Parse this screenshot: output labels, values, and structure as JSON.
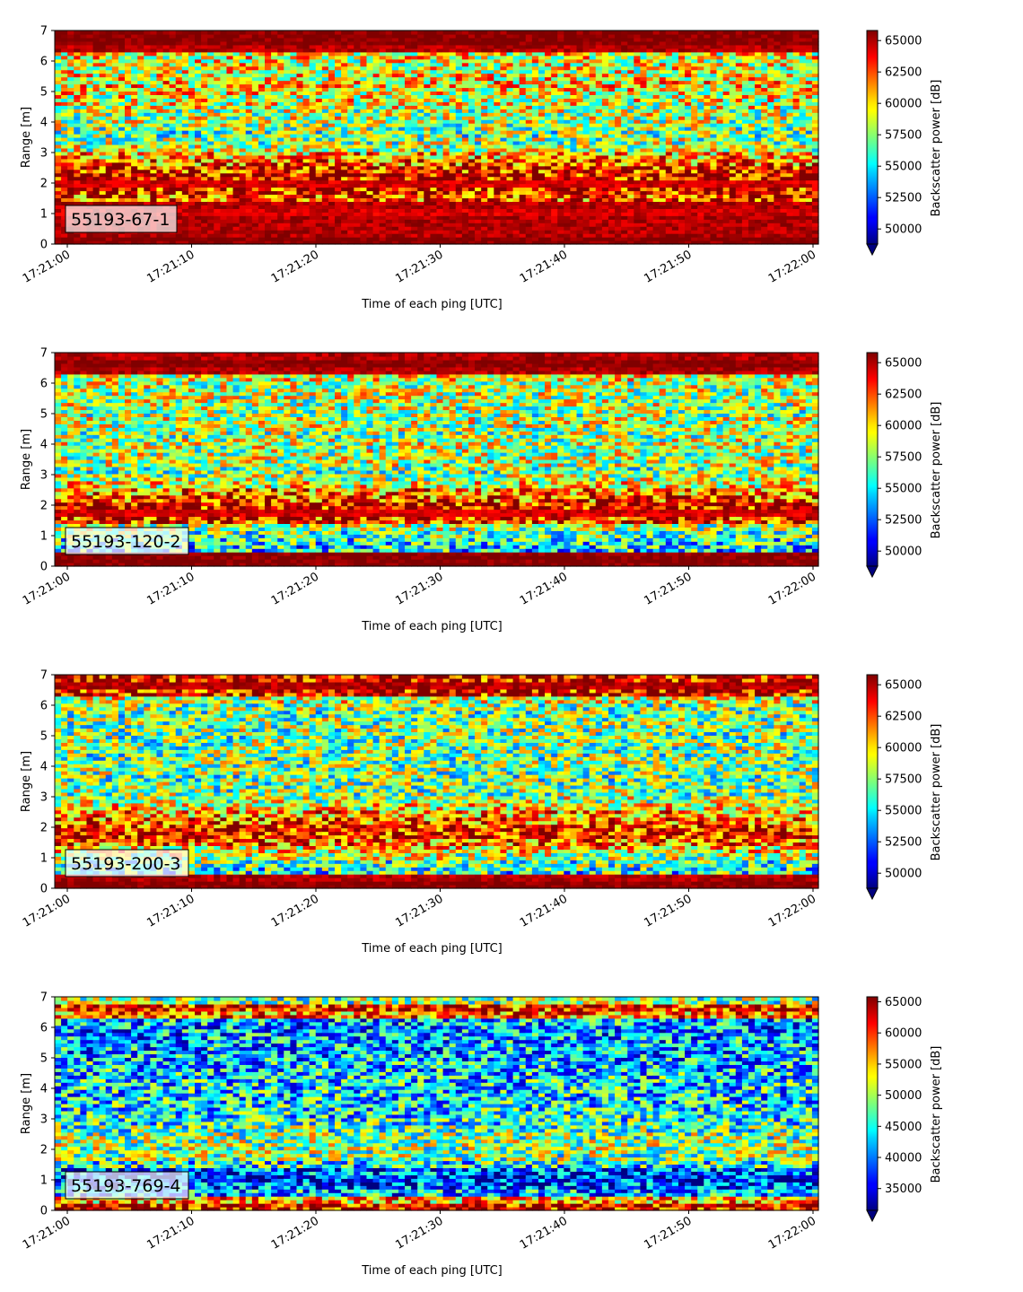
{
  "chart_data": [
    {
      "type": "heatmap",
      "label": "55193-67-1",
      "xlabel": "Time of each ping [UTC]",
      "ylabel": "Range [m]",
      "x_range": [
        "17:21:00",
        "17:22:00"
      ],
      "x_ticks": [
        "17:21:00",
        "17:21:10",
        "17:21:20",
        "17:21:30",
        "17:21:40",
        "17:21:50",
        "17:22:00"
      ],
      "y_ticks": [
        "0",
        "1",
        "2",
        "3",
        "4",
        "5",
        "6",
        "7"
      ],
      "ylim": [
        0,
        7
      ],
      "colorbar": {
        "label": "Backscatter power [dB]",
        "vmin": 48800,
        "vmax": 65800,
        "ticks": [
          "50000",
          "52500",
          "55000",
          "57500",
          "60000",
          "62500",
          "65000"
        ],
        "extend": "min"
      },
      "profile": {
        "description_note": "per-range-bin mean level (fraction of color range) from 0 m to 7 m",
        "levels": [
          1.0,
          0.95,
          0.95,
          0.95,
          0.92,
          0.95,
          0.82,
          0.88,
          0.92,
          0.9,
          0.86,
          0.78,
          0.7,
          0.55,
          0.52,
          0.48,
          0.52,
          0.55,
          0.55,
          0.58,
          0.6,
          0.62,
          0.65,
          0.62,
          0.6,
          0.6,
          0.62,
          0.95,
          1.0,
          1.0
        ]
      }
    },
    {
      "type": "heatmap",
      "label": "55193-120-2",
      "xlabel": "Time of each ping [UTC]",
      "ylabel": "Range [m]",
      "x_range": [
        "17:21:00",
        "17:22:00"
      ],
      "x_ticks": [
        "17:21:00",
        "17:21:10",
        "17:21:20",
        "17:21:30",
        "17:21:40",
        "17:21:50",
        "17:22:00"
      ],
      "y_ticks": [
        "0",
        "1",
        "2",
        "3",
        "4",
        "5",
        "6",
        "7"
      ],
      "ylim": [
        0,
        7
      ],
      "colorbar": {
        "label": "Backscatter power [dB]",
        "vmin": 48800,
        "vmax": 65800,
        "ticks": [
          "50000",
          "52500",
          "55000",
          "57500",
          "60000",
          "62500",
          "65000"
        ],
        "extend": "min"
      },
      "profile": {
        "levels": [
          1.0,
          1.0,
          0.35,
          0.4,
          0.45,
          0.55,
          0.85,
          0.92,
          0.9,
          0.8,
          0.75,
          0.62,
          0.55,
          0.5,
          0.55,
          0.55,
          0.55,
          0.55,
          0.52,
          0.55,
          0.55,
          0.52,
          0.55,
          0.55,
          0.55,
          0.55,
          0.6,
          0.95,
          1.0,
          0.95
        ]
      }
    },
    {
      "type": "heatmap",
      "label": "55193-200-3",
      "xlabel": "Time of each ping [UTC]",
      "ylabel": "Range [m]",
      "x_range": [
        "17:21:00",
        "17:22:00"
      ],
      "x_ticks": [
        "17:21:00",
        "17:21:10",
        "17:21:20",
        "17:21:30",
        "17:21:40",
        "17:21:50",
        "17:22:00"
      ],
      "y_ticks": [
        "0",
        "1",
        "2",
        "3",
        "4",
        "5",
        "6",
        "7"
      ],
      "ylim": [
        0,
        7
      ],
      "colorbar": {
        "label": "Backscatter power [dB]",
        "vmin": 48800,
        "vmax": 65800,
        "ticks": [
          "50000",
          "52500",
          "55000",
          "57500",
          "60000",
          "62500",
          "65000"
        ],
        "extend": "min"
      },
      "profile": {
        "levels": [
          1.0,
          0.95,
          0.4,
          0.45,
          0.55,
          0.65,
          0.78,
          0.88,
          0.85,
          0.78,
          0.72,
          0.62,
          0.55,
          0.5,
          0.5,
          0.48,
          0.5,
          0.5,
          0.48,
          0.5,
          0.5,
          0.48,
          0.5,
          0.5,
          0.48,
          0.5,
          0.58,
          0.9,
          0.95,
          0.9
        ]
      }
    },
    {
      "type": "heatmap",
      "label": "55193-769-4",
      "xlabel": "Time of each ping [UTC]",
      "ylabel": "Range [m]",
      "x_range": [
        "17:21:00",
        "17:22:00"
      ],
      "x_ticks": [
        "17:21:00",
        "17:21:10",
        "17:21:20",
        "17:21:30",
        "17:21:40",
        "17:21:50",
        "17:22:00"
      ],
      "y_ticks": [
        "0",
        "1",
        "2",
        "3",
        "4",
        "5",
        "6",
        "7"
      ],
      "ylim": [
        0,
        7
      ],
      "colorbar": {
        "label": "Backscatter power [dB]",
        "vmin": 31500,
        "vmax": 65800,
        "ticks": [
          "35000",
          "40000",
          "45000",
          "50000",
          "55000",
          "60000",
          "65000"
        ],
        "extend": "min"
      },
      "profile": {
        "levels": [
          0.9,
          0.7,
          0.3,
          0.2,
          0.15,
          0.2,
          0.4,
          0.5,
          0.52,
          0.52,
          0.5,
          0.45,
          0.4,
          0.38,
          0.38,
          0.35,
          0.35,
          0.35,
          0.35,
          0.33,
          0.33,
          0.3,
          0.3,
          0.3,
          0.28,
          0.28,
          0.3,
          0.75,
          0.85,
          0.5
        ]
      }
    }
  ]
}
